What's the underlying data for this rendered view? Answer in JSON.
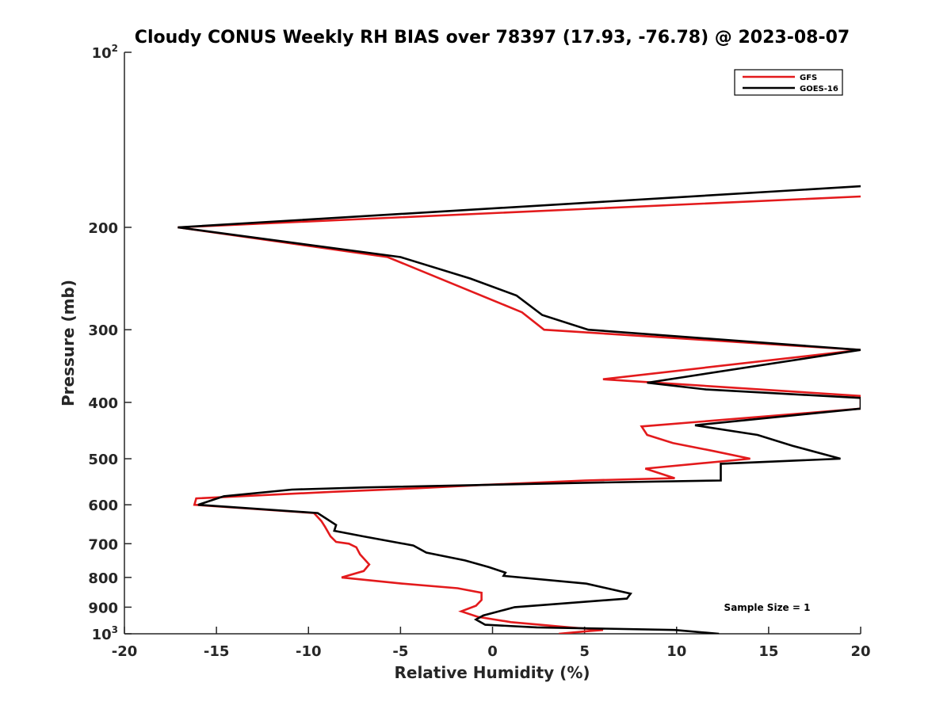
{
  "chart_data": {
    "type": "line",
    "title": "Cloudy CONUS Weekly RH BIAS over 78397 (17.93, -76.78) @ 2023-08-07",
    "xlabel": "Relative Humidity (%)",
    "ylabel": "Pressure (mb)",
    "xlim": [
      -20,
      20
    ],
    "ylim": [
      100,
      1000
    ],
    "yscale": "log",
    "yreversed": true,
    "grid": false,
    "legend_position": "top-right",
    "x_ticks": [
      {
        "value": -20,
        "label": "-20"
      },
      {
        "value": -15,
        "label": "-15"
      },
      {
        "value": -10,
        "label": "-10"
      },
      {
        "value": -5,
        "label": "-5"
      },
      {
        "value": 0,
        "label": "0"
      },
      {
        "value": 5,
        "label": "5"
      },
      {
        "value": 10,
        "label": "10"
      },
      {
        "value": 15,
        "label": "15"
      },
      {
        "value": 20,
        "label": "20"
      }
    ],
    "y_ticks": [
      {
        "value": 100,
        "base": "10",
        "exp": "2"
      },
      {
        "value": 200,
        "base": "200",
        "exp": ""
      },
      {
        "value": 300,
        "base": "300",
        "exp": ""
      },
      {
        "value": 400,
        "base": "400",
        "exp": ""
      },
      {
        "value": 500,
        "base": "500",
        "exp": ""
      },
      {
        "value": 600,
        "base": "600",
        "exp": ""
      },
      {
        "value": 700,
        "base": "700",
        "exp": ""
      },
      {
        "value": 800,
        "base": "800",
        "exp": ""
      },
      {
        "value": 900,
        "base": "900",
        "exp": ""
      },
      {
        "value": 1000,
        "base": "10",
        "exp": "3"
      }
    ],
    "annotation": "Sample Size = 1",
    "series": [
      {
        "name": "GFS",
        "color": "#e31a1c",
        "points": [
          [
            20.0,
            177
          ],
          [
            -17.1,
            200
          ],
          [
            -5.7,
            225
          ],
          [
            1.6,
            280
          ],
          [
            2.8,
            300
          ],
          [
            20.0,
            325
          ],
          [
            6.0,
            365
          ],
          [
            20.0,
            390
          ],
          [
            20.0,
            400
          ],
          [
            20.0,
            410
          ],
          [
            8.1,
            440
          ],
          [
            8.4,
            455
          ],
          [
            9.8,
            470
          ],
          [
            12.0,
            485
          ],
          [
            14.0,
            500
          ],
          [
            8.3,
            520
          ],
          [
            9.9,
            540
          ],
          [
            5.0,
            545
          ],
          [
            -0.7,
            555
          ],
          [
            -4.1,
            562
          ],
          [
            -8.7,
            570
          ],
          [
            -16.1,
            585
          ],
          [
            -16.2,
            600
          ],
          [
            -9.7,
            620
          ],
          [
            -9.3,
            640
          ],
          [
            -9.1,
            655
          ],
          [
            -8.8,
            680
          ],
          [
            -8.5,
            695
          ],
          [
            -7.8,
            700
          ],
          [
            -7.4,
            710
          ],
          [
            -7.2,
            730
          ],
          [
            -6.7,
            760
          ],
          [
            -7.0,
            780
          ],
          [
            -8.2,
            800
          ],
          [
            -4.9,
            820
          ],
          [
            -1.9,
            835
          ],
          [
            -0.6,
            850
          ],
          [
            -0.6,
            875
          ],
          [
            -0.9,
            895
          ],
          [
            -1.7,
            915
          ],
          [
            -0.8,
            935
          ],
          [
            1.0,
            955
          ],
          [
            4.2,
            975
          ],
          [
            6.0,
            985
          ],
          [
            5.1,
            990
          ],
          [
            3.6,
            1000
          ]
        ]
      },
      {
        "name": "GOES-16",
        "color": "#000000",
        "points": [
          [
            20.0,
            170
          ],
          [
            -17.1,
            200
          ],
          [
            -5.0,
            225
          ],
          [
            -1.2,
            245
          ],
          [
            1.3,
            262
          ],
          [
            2.7,
            283
          ],
          [
            5.2,
            300
          ],
          [
            20.0,
            325
          ],
          [
            8.4,
            370
          ],
          [
            11.6,
            380
          ],
          [
            20.0,
            393
          ],
          [
            20.0,
            400
          ],
          [
            20.0,
            410
          ],
          [
            11.0,
            438
          ],
          [
            14.4,
            455
          ],
          [
            16.3,
            475
          ],
          [
            18.9,
            500
          ],
          [
            12.4,
            510
          ],
          [
            12.4,
            545
          ],
          [
            5.0,
            550
          ],
          [
            -6.8,
            560
          ],
          [
            -10.9,
            565
          ],
          [
            -14.6,
            580
          ],
          [
            -16.0,
            600
          ],
          [
            -9.5,
            620
          ],
          [
            -8.5,
            650
          ],
          [
            -8.6,
            665
          ],
          [
            -7.0,
            680
          ],
          [
            -4.3,
            705
          ],
          [
            -3.6,
            725
          ],
          [
            -1.5,
            748
          ],
          [
            -0.2,
            768
          ],
          [
            0.7,
            785
          ],
          [
            0.6,
            795
          ],
          [
            5.1,
            820
          ],
          [
            7.5,
            853
          ],
          [
            7.3,
            870
          ],
          [
            1.2,
            900
          ],
          [
            -0.5,
            930
          ],
          [
            -0.9,
            945
          ],
          [
            -0.4,
            965
          ],
          [
            2.4,
            975
          ],
          [
            9.9,
            985
          ],
          [
            12.3,
            1000
          ]
        ]
      }
    ]
  }
}
